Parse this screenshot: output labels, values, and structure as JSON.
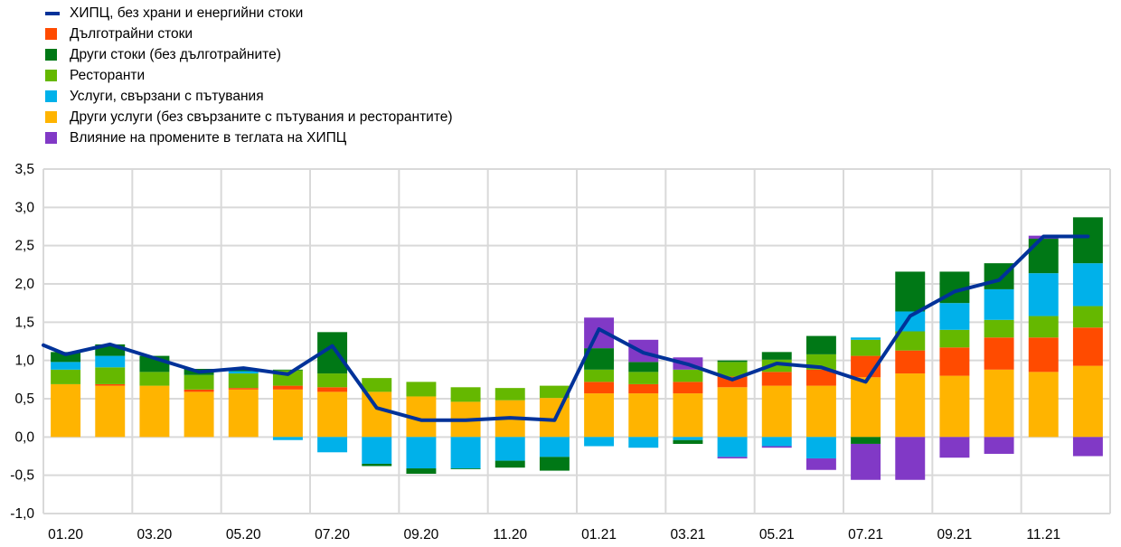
{
  "chart_data": {
    "type": "bar",
    "stacked": true,
    "categories": [
      "01.20",
      "02.20",
      "03.20",
      "04.20",
      "05.20",
      "06.20",
      "07.20",
      "08.20",
      "09.20",
      "10.20",
      "11.20",
      "12.20",
      "01.21",
      "02.21",
      "03.21",
      "04.21",
      "05.21",
      "06.21",
      "07.21",
      "08.21",
      "09.21",
      "10.21",
      "11.21",
      "12.21"
    ],
    "x_tick_labels": [
      "01.20",
      "03.20",
      "05.20",
      "07.20",
      "09.20",
      "11.20",
      "01.21",
      "03.21",
      "05.21",
      "07.21",
      "09.21",
      "11.21"
    ],
    "ylim": [
      -1.0,
      3.5
    ],
    "y_tick_labels": [
      "3,5",
      "3,0",
      "2,5",
      "2,0",
      "1,5",
      "1,0",
      "0,5",
      "0,0",
      "-0,5",
      "-1,0"
    ],
    "y_ticks": [
      3.5,
      3.0,
      2.5,
      2.0,
      1.5,
      1.0,
      0.5,
      0.0,
      -0.5,
      -1.0
    ],
    "grid": true,
    "legend_position": "top-left",
    "line": {
      "name": "ХИПЦ, без храни  и енергийни  стоки",
      "color": "#003299",
      "values": [
        1.08,
        1.21,
        1.03,
        0.85,
        0.9,
        0.82,
        1.19,
        0.38,
        0.22,
        0.22,
        0.25,
        0.22,
        1.41,
        1.1,
        0.95,
        0.75,
        0.96,
        0.91,
        0.72,
        1.58,
        1.9,
        2.05,
        2.62,
        2.62
      ]
    },
    "series": [
      {
        "name": "Други услуги  (без свързаните с пътувания  и ресторантите)",
        "color": "#FFB400",
        "values": [
          0.69,
          0.67,
          0.67,
          0.59,
          0.62,
          0.62,
          0.59,
          0.59,
          0.53,
          0.46,
          0.48,
          0.51,
          0.57,
          0.57,
          0.57,
          0.65,
          0.67,
          0.67,
          0.78,
          0.83,
          0.8,
          0.88,
          0.85,
          0.93
        ]
      },
      {
        "name": "Дълготрайни  стоки",
        "color": "#FF4B00",
        "values": [
          0,
          0.02,
          0,
          0.03,
          0.02,
          0.05,
          0.06,
          0,
          0,
          0,
          0,
          0,
          0.15,
          0.12,
          0.15,
          0.14,
          0.18,
          0.21,
          0.28,
          0.3,
          0.37,
          0.42,
          0.45,
          0.5
        ]
      },
      {
        "name": "Ресторанти",
        "color": "#65B800",
        "values": [
          0.19,
          0.22,
          0.18,
          0.19,
          0.19,
          0.2,
          0.18,
          0.18,
          0.19,
          0.19,
          0.16,
          0.16,
          0.16,
          0.16,
          0.16,
          0.19,
          0.16,
          0.2,
          0.21,
          0.25,
          0.23,
          0.23,
          0.28,
          0.28
        ]
      },
      {
        "name": "Услуги,  свързани с пътувания",
        "color": "#00B1EA",
        "values": [
          0.1,
          0.15,
          0,
          0,
          0.03,
          -0.04,
          -0.2,
          -0.35,
          -0.41,
          -0.41,
          -0.31,
          -0.26,
          -0.12,
          -0.14,
          -0.04,
          -0.26,
          -0.12,
          -0.28,
          0.03,
          0.26,
          0.35,
          0.4,
          0.56,
          0.56
        ]
      },
      {
        "name": "Други  стоки (без дълготрайните)",
        "color": "#007816",
        "values": [
          0.13,
          0.15,
          0.21,
          0.08,
          0.02,
          0.01,
          0.54,
          -0.03,
          -0.07,
          -0.01,
          -0.09,
          -0.18,
          0.28,
          0.13,
          -0.05,
          0.02,
          0.1,
          0.24,
          -0.09,
          0.52,
          0.41,
          0.34,
          0.45,
          0.6
        ]
      },
      {
        "name": "Влияние на промените  в теглата на ХИПЦ",
        "color": "#8139C6",
        "values": [
          0,
          0,
          0,
          0,
          0,
          0,
          0,
          0,
          0,
          0,
          0,
          0,
          0.4,
          0.29,
          0.16,
          -0.02,
          -0.02,
          -0.15,
          -0.47,
          -0.56,
          -0.27,
          -0.22,
          0.04,
          -0.25
        ]
      }
    ],
    "legend_order": [
      "line",
      1,
      4,
      2,
      3,
      0,
      5
    ]
  }
}
